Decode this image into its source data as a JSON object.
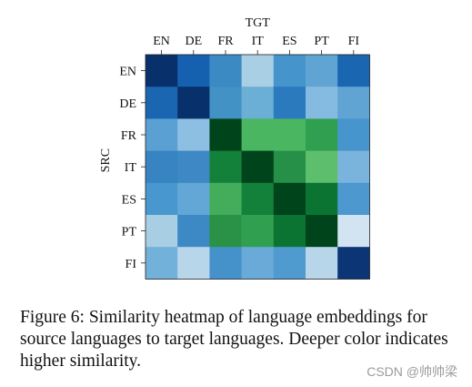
{
  "chart_data": {
    "type": "heatmap",
    "xlabel": "TGT",
    "ylabel": "SRC",
    "x_categories": [
      "EN",
      "DE",
      "FR",
      "IT",
      "ES",
      "PT",
      "FI"
    ],
    "y_categories": [
      "EN",
      "DE",
      "FR",
      "IT",
      "ES",
      "PT",
      "FI"
    ],
    "cells": [
      [
        "#08306b",
        "#1561b0",
        "#3b8ac4",
        "#a9cfe5",
        "#4594cc",
        "#60a4d4",
        "#1a66b1"
      ],
      [
        "#1a66b1",
        "#08306b",
        "#4292c6",
        "#6baed6",
        "#2a7abd",
        "#85bbe0",
        "#60a4d4"
      ],
      [
        "#5aa0d2",
        "#8cbfe2",
        "#00441b",
        "#4ab662",
        "#4ab662",
        "#30a050",
        "#4695cd"
      ],
      [
        "#3883c2",
        "#3e88c5",
        "#14813b",
        "#00441b",
        "#279048",
        "#5dbf6d",
        "#7ab4dc"
      ],
      [
        "#4898cf",
        "#63a7d6",
        "#43ad5c",
        "#14813b",
        "#00441b",
        "#0c7432",
        "#4c98cf"
      ],
      [
        "#a8cee4",
        "#3c89c5",
        "#2a9246",
        "#30a050",
        "#0c7432",
        "#00441b",
        "#d2e3f2"
      ],
      [
        "#72b1da",
        "#b8d6ea",
        "#4592cb",
        "#6aaad8",
        "#4f9bd0",
        "#b8d6ea",
        "#0b3575"
      ]
    ]
  },
  "caption": "Figure 6: Similarity heatmap of language embeddings for source languages to target languages. Deeper color indicates higher similarity.",
  "watermark": "CSDN @帅帅梁"
}
